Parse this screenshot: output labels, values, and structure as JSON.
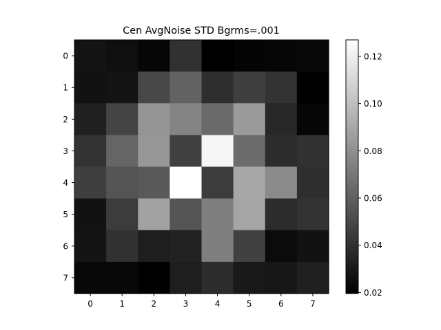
{
  "chart_data": {
    "type": "heatmap",
    "title": "Cen AvgNoise STD Bgrms=.001",
    "xlabel": "",
    "ylabel": "",
    "x_categories": [
      "0",
      "1",
      "2",
      "3",
      "4",
      "5",
      "6",
      "7"
    ],
    "y_categories": [
      "0",
      "1",
      "2",
      "3",
      "4",
      "5",
      "6",
      "7"
    ],
    "values": [
      [
        0.028,
        0.026,
        0.022,
        0.04,
        0.019,
        0.021,
        0.022,
        0.023
      ],
      [
        0.027,
        0.028,
        0.05,
        0.061,
        0.039,
        0.046,
        0.041,
        0.02
      ],
      [
        0.033,
        0.048,
        0.082,
        0.075,
        0.064,
        0.085,
        0.036,
        0.022
      ],
      [
        0.041,
        0.062,
        0.083,
        0.047,
        0.123,
        0.065,
        0.038,
        0.04
      ],
      [
        0.046,
        0.055,
        0.057,
        0.127,
        0.045,
        0.09,
        0.078,
        0.039
      ],
      [
        0.027,
        0.045,
        0.088,
        0.055,
        0.073,
        0.089,
        0.038,
        0.041
      ],
      [
        0.028,
        0.04,
        0.032,
        0.034,
        0.073,
        0.047,
        0.024,
        0.027
      ],
      [
        0.023,
        0.023,
        0.02,
        0.032,
        0.038,
        0.03,
        0.029,
        0.033
      ]
    ],
    "colorbar": {
      "colormap": "gray",
      "vmin": 0.0195,
      "vmax": 0.127,
      "ticks": [
        "0.02",
        "0.04",
        "0.06",
        "0.08",
        "0.10",
        "0.12"
      ],
      "tick_values": [
        0.02,
        0.04,
        0.06,
        0.08,
        0.1,
        0.12
      ]
    }
  }
}
